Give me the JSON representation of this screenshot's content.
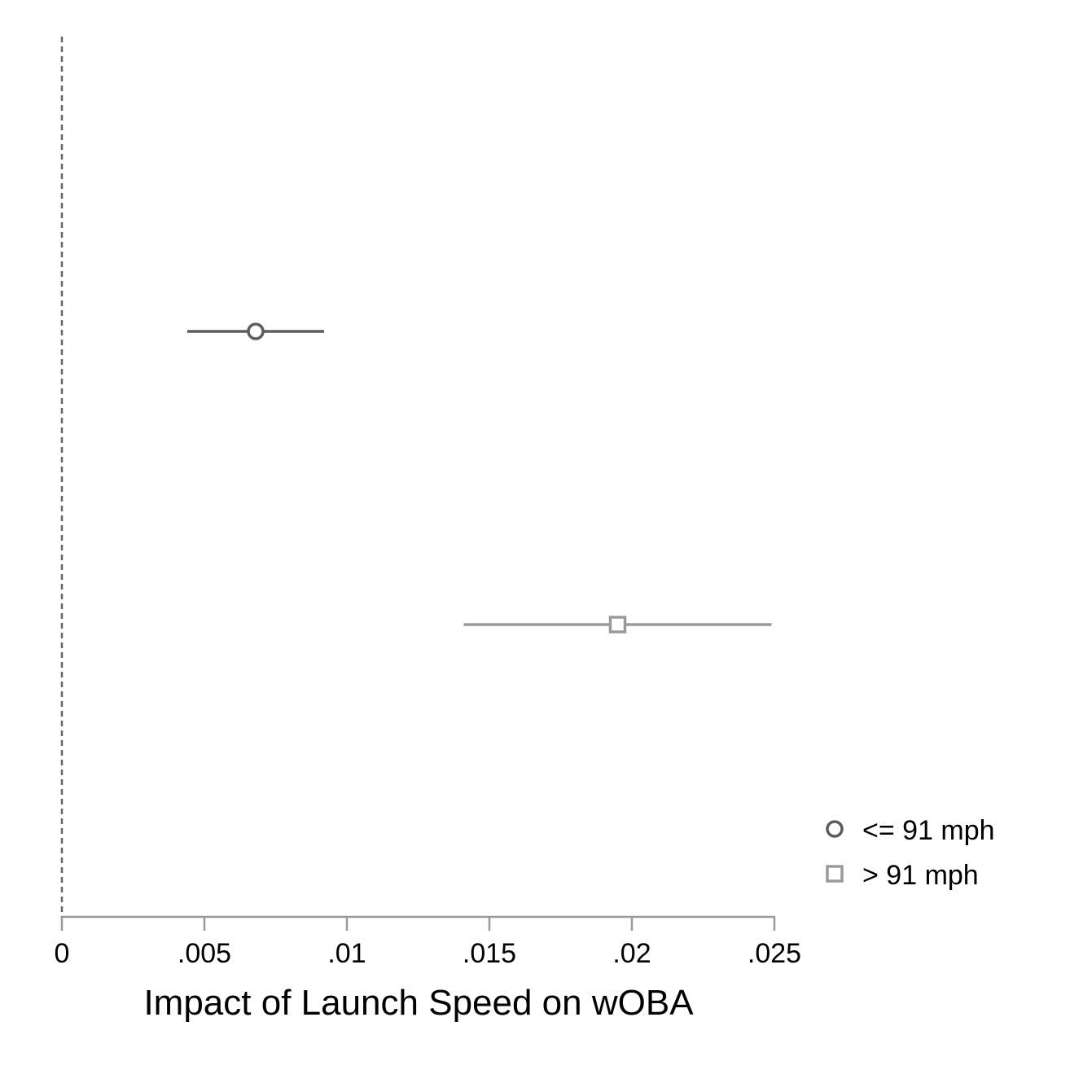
{
  "chart_data": {
    "type": "scatter",
    "subtype": "coefficient-plot",
    "xlabel": "Impact of Launch Speed on wOBA",
    "ylabel": "",
    "xlim": [
      0,
      0.025
    ],
    "x_ticks": [
      0,
      0.005,
      0.01,
      0.015,
      0.02,
      0.025
    ],
    "x_tick_labels": [
      "0",
      ".005",
      ".01",
      ".015",
      ".02",
      ".025"
    ],
    "reference_line": {
      "x": 0,
      "style": "dashed",
      "color": "#666666"
    },
    "grid": false,
    "legend_position": "bottom-right",
    "series": [
      {
        "name": "<= 91 mph",
        "marker": "circle",
        "color": "#5c5c5c",
        "estimate": 0.0068,
        "ci_low": 0.0044,
        "ci_high": 0.0092
      },
      {
        "name": "> 91 mph",
        "marker": "square",
        "color": "#9a9a9a",
        "estimate": 0.0195,
        "ci_low": 0.0141,
        "ci_high": 0.0249
      }
    ]
  }
}
